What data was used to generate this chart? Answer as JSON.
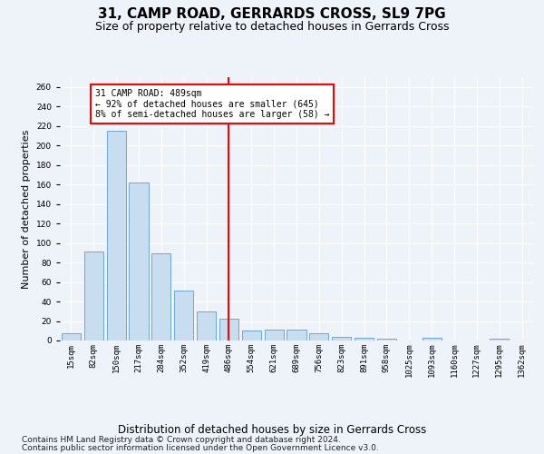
{
  "title": "31, CAMP ROAD, GERRARDS CROSS, SL9 7PG",
  "subtitle": "Size of property relative to detached houses in Gerrards Cross",
  "xlabel": "Distribution of detached houses by size in Gerrards Cross",
  "ylabel": "Number of detached properties",
  "categories": [
    "15sqm",
    "82sqm",
    "150sqm",
    "217sqm",
    "284sqm",
    "352sqm",
    "419sqm",
    "486sqm",
    "554sqm",
    "621sqm",
    "689sqm",
    "756sqm",
    "823sqm",
    "891sqm",
    "958sqm",
    "1025sqm",
    "1093sqm",
    "1160sqm",
    "1227sqm",
    "1295sqm",
    "1362sqm"
  ],
  "values": [
    7,
    91,
    215,
    162,
    89,
    51,
    30,
    22,
    10,
    11,
    11,
    7,
    4,
    3,
    2,
    0,
    3,
    0,
    0,
    2,
    0
  ],
  "bar_color": "#c9ddf0",
  "bar_edge_color": "#5b9bd5",
  "property_line_x": 7,
  "property_label": "31 CAMP ROAD: 489sqm",
  "annotation_line1": "← 92% of detached houses are smaller (645)",
  "annotation_line2": "8% of semi-detached houses are larger (58) →",
  "annotation_box_color": "white",
  "annotation_box_edge_color": "red",
  "property_line_color": "red",
  "ylim": [
    0,
    270
  ],
  "yticks": [
    0,
    20,
    40,
    60,
    80,
    100,
    120,
    140,
    160,
    180,
    200,
    220,
    240,
    260
  ],
  "footnote1": "Contains HM Land Registry data © Crown copyright and database right 2024.",
  "footnote2": "Contains public sector information licensed under the Open Government Licence v3.0.",
  "background_color": "#eef2f9",
  "plot_background_color": "#eef2f9",
  "title_fontsize": 11,
  "subtitle_fontsize": 9,
  "xlabel_fontsize": 8.5,
  "ylabel_fontsize": 8,
  "tick_fontsize": 6.5,
  "footnote_fontsize": 6.5
}
